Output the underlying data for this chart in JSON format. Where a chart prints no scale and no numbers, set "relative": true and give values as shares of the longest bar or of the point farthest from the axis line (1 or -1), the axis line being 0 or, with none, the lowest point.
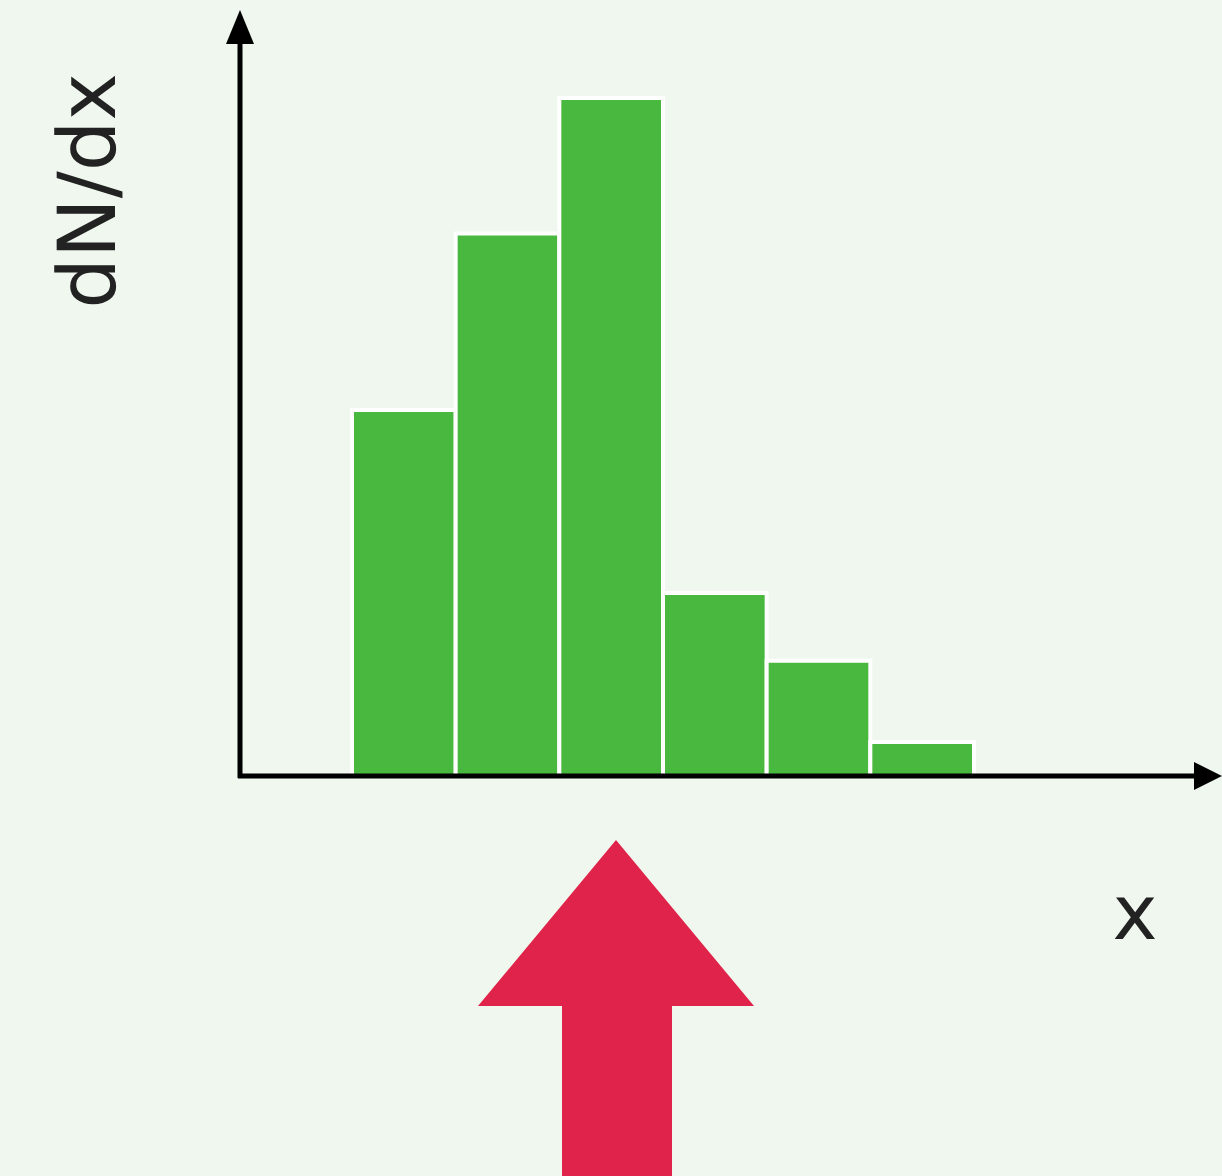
{
  "chart_data": {
    "type": "bar",
    "xlabel": "x",
    "ylabel": "dN/dx",
    "relative": true,
    "color": "#48b83f",
    "categories": [
      null,
      null,
      null,
      null,
      null,
      null
    ],
    "values": [
      0.54,
      0.8,
      1,
      0.27,
      0.17,
      0.05
    ]
  }
}
